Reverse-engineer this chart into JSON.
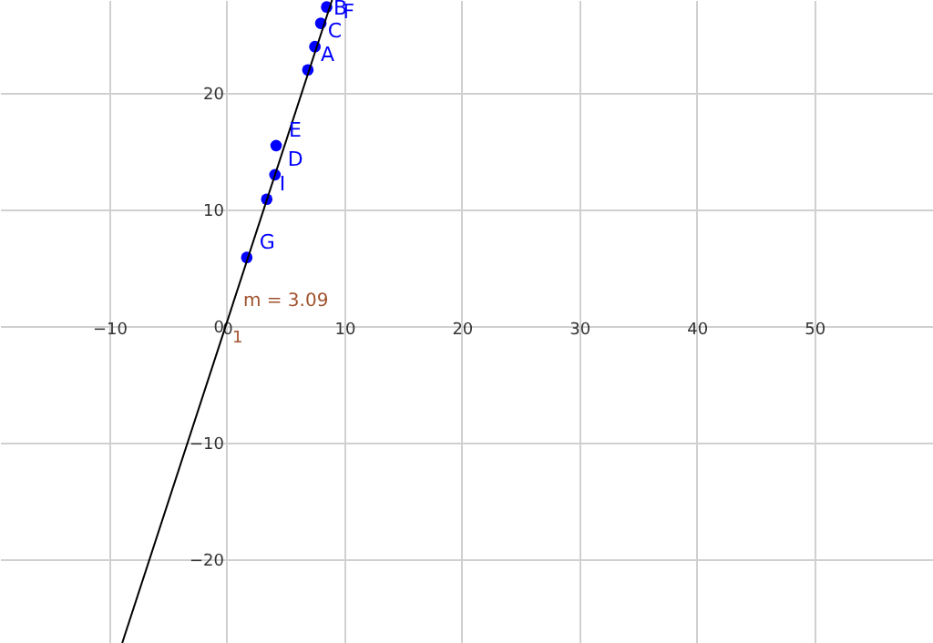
{
  "chart_data": {
    "type": "scatter",
    "xlim": [
      -19.3,
      60.1
    ],
    "ylim": [
      -27.2,
      28.0
    ],
    "xticks": [
      -10,
      0,
      10,
      20,
      30,
      40,
      50
    ],
    "yticks": [
      -20,
      -10,
      0,
      10,
      20
    ],
    "grid": true,
    "series": [
      {
        "color": "#0000ff",
        "marker": "circle",
        "x": [
          1.7,
          3.4,
          4.1,
          4.2,
          6.9,
          7.5,
          8.0,
          8.5
        ],
        "values": [
          5.9,
          10.9,
          13.0,
          15.5,
          22.0,
          24.0,
          26.0,
          27.4
        ]
      },
      {
        "type": "line",
        "marker": "none",
        "line_style": "solid",
        "color": "#000000",
        "x": [
          -8.9,
          8.96
        ],
        "values": [
          -27.2,
          28.0
        ]
      }
    ],
    "annotations": [
      {
        "text": "G",
        "x": 1.7,
        "y": 5.9
      },
      {
        "text": "I",
        "x": 3.4,
        "y": 10.9
      },
      {
        "text": "D",
        "x": 4.1,
        "y": 13.0
      },
      {
        "text": "E",
        "x": 4.2,
        "y": 15.5
      },
      {
        "text": "A",
        "x": 6.9,
        "y": 22.0
      },
      {
        "text": "C",
        "x": 7.5,
        "y": 24.0
      },
      {
        "text": "B",
        "x": 8.0,
        "y": 26.0
      },
      {
        "text": "F",
        "x": 8.5,
        "y": 27.4
      },
      "m = 3.09",
      "1"
    ]
  }
}
